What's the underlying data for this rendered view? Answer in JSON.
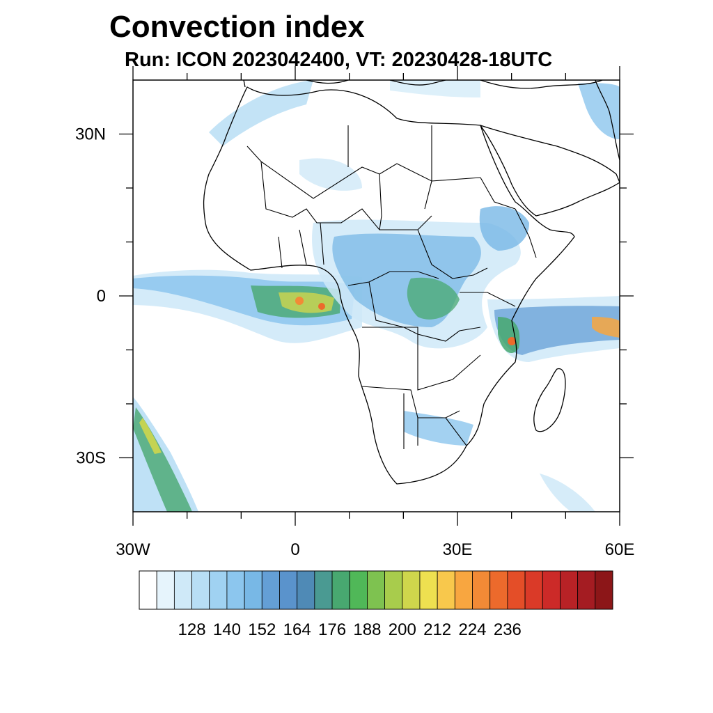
{
  "title": "Convection index",
  "subtitle": "Run: ICON 2023042400,  VT: 20230428-18UTC",
  "map": {
    "lon_range": [
      -30,
      60
    ],
    "lat_range": [
      -40,
      40
    ],
    "x_tick_labels": [
      {
        "lon": -30,
        "label": "30W"
      },
      {
        "lon": 0,
        "label": "0"
      },
      {
        "lon": 30,
        "label": "30E"
      },
      {
        "lon": 60,
        "label": "60E"
      }
    ],
    "y_tick_labels": [
      {
        "lat": 30,
        "label": "30N"
      },
      {
        "lat": 0,
        "label": "0"
      },
      {
        "lat": -30,
        "label": "30S"
      }
    ],
    "minor_lon_ticks": [
      -20,
      -10,
      10,
      20,
      40,
      50
    ],
    "minor_lat_ticks": [
      20,
      10,
      -10,
      -20
    ]
  },
  "colorbar": {
    "colors": [
      "#ffffff",
      "#e6f4fc",
      "#cfe9f8",
      "#b8def5",
      "#a0d2f2",
      "#8cc6ee",
      "#78b8e6",
      "#649fd6",
      "#5a93cc",
      "#4f8ab6",
      "#4a9a92",
      "#48a870",
      "#50b858",
      "#7ec250",
      "#a8cc4c",
      "#cfd64c",
      "#eee050",
      "#f8c84c",
      "#f8a640",
      "#f28a36",
      "#ec6a2c",
      "#e44e28",
      "#da3a28",
      "#cc2a28",
      "#b82226",
      "#a41c22",
      "#8c1618"
    ],
    "tick_labels": [
      "128",
      "140",
      "152",
      "164",
      "176",
      "188",
      "200",
      "212",
      "224",
      "236"
    ]
  }
}
